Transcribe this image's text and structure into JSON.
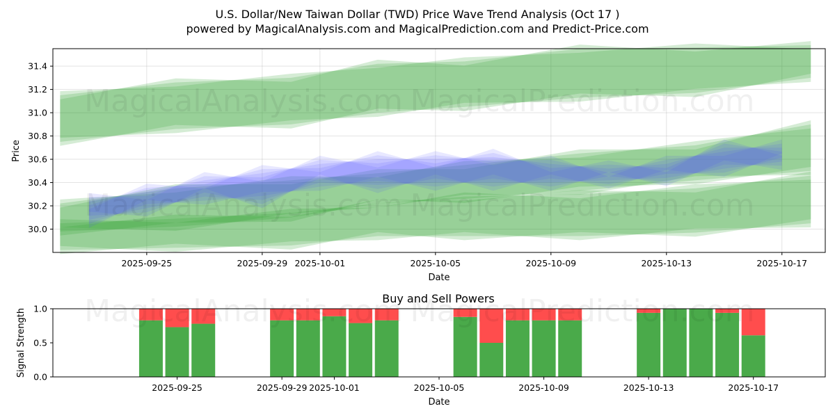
{
  "title": "U.S. Dollar/New Taiwan Dollar (TWD) Price Wave Trend Analysis (Oct 17 )",
  "subtitle": "powered by MagicalAnalysis.com and MagicalPrediction.com and Predict-Price.com",
  "watermarks": [
    "MagicalAnalysis.com",
    "MagicalPrediction.com"
  ],
  "colors": {
    "band_green": "#2ca02c",
    "band_blue": "#4a4aff",
    "buy": "#4aaa4a",
    "sell": "#ff4d4d"
  },
  "chart_data": [
    {
      "type": "area",
      "name": "price-wave-chart",
      "xlabel": "Date",
      "ylabel": "Price",
      "ylim": [
        29.8,
        31.55
      ],
      "xlim": [
        "2025-09-21T18:00",
        "2025-10-18T12:00"
      ],
      "x_tick_labels": [
        "2025-09-25",
        "2025-09-29",
        "2025-10-01",
        "2025-10-05",
        "2025-10-09",
        "2025-10-13",
        "2025-10-17"
      ],
      "y_tick_labels": [
        "30.0",
        "30.2",
        "30.4",
        "30.6",
        "30.8",
        "31.0",
        "31.2",
        "31.4"
      ],
      "y_ticks": [
        30.0,
        30.2,
        30.4,
        30.6,
        30.8,
        31.0,
        31.2,
        31.4
      ],
      "grid": true,
      "series": [
        {
          "name": "upper-wave-band",
          "color": "green",
          "x": [
            "2025-09-22",
            "2025-09-26",
            "2025-09-30",
            "2025-10-03",
            "2025-10-06",
            "2025-10-10",
            "2025-10-14",
            "2025-10-18"
          ],
          "lower": [
            30.75,
            30.86,
            30.9,
            31.0,
            31.05,
            31.13,
            31.17,
            31.3
          ],
          "upper": [
            31.15,
            31.26,
            31.3,
            31.42,
            31.44,
            31.55,
            31.56,
            31.58
          ]
        },
        {
          "name": "middle-wave-band",
          "color": "green",
          "x": [
            "2025-09-22",
            "2025-09-26",
            "2025-09-30",
            "2025-10-03",
            "2025-10-06",
            "2025-10-10",
            "2025-10-14",
            "2025-10-18"
          ],
          "lower": [
            29.98,
            30.02,
            30.1,
            30.22,
            30.26,
            30.33,
            30.42,
            30.5
          ],
          "upper": [
            30.22,
            30.35,
            30.42,
            30.48,
            30.55,
            30.65,
            30.72,
            30.9
          ]
        },
        {
          "name": "lower-wave-band",
          "color": "green",
          "x": [
            "2025-09-22",
            "2025-09-26",
            "2025-09-30",
            "2025-10-03",
            "2025-10-06",
            "2025-10-10",
            "2025-10-14",
            "2025-10-18"
          ],
          "lower": [
            29.82,
            29.84,
            29.86,
            29.94,
            29.94,
            29.94,
            29.97,
            30.05
          ],
          "upper": [
            30.05,
            30.09,
            30.14,
            30.22,
            30.28,
            30.3,
            30.35,
            30.46
          ]
        },
        {
          "name": "price-wave-blue",
          "color": "blue",
          "x": [
            "2025-09-23",
            "2025-09-25",
            "2025-09-27",
            "2025-09-29",
            "2025-10-01",
            "2025-10-03",
            "2025-10-05",
            "2025-10-07",
            "2025-10-09",
            "2025-10-11",
            "2025-10-13",
            "2025-10-15",
            "2025-10-17"
          ],
          "lower": [
            30.08,
            30.18,
            30.28,
            30.25,
            30.4,
            30.38,
            30.4,
            30.4,
            30.4,
            30.42,
            30.44,
            30.52,
            30.58
          ],
          "upper": [
            30.24,
            30.32,
            30.42,
            30.48,
            30.56,
            30.6,
            30.6,
            30.62,
            30.56,
            30.52,
            30.56,
            30.7,
            30.7
          ]
        }
      ]
    },
    {
      "type": "bar",
      "name": "buy-sell-powers-chart",
      "title": "Buy and Sell Powers",
      "xlabel": "Date",
      "ylabel": "Signal Strength",
      "ylim": [
        0,
        1.0
      ],
      "y_ticks": [
        0.0,
        0.5,
        1.0
      ],
      "y_tick_labels": [
        "0.0",
        "0.5",
        "1.0"
      ],
      "x_tick_labels": [
        "2025-09-25",
        "2025-09-29",
        "2025-10-01",
        "2025-10-05",
        "2025-10-09",
        "2025-10-13",
        "2025-10-17"
      ],
      "categories": [
        "2025-09-24",
        "2025-09-25",
        "2025-09-26",
        "2025-09-29",
        "2025-09-30",
        "2025-10-01",
        "2025-10-02",
        "2025-10-03",
        "2025-10-06",
        "2025-10-07",
        "2025-10-08",
        "2025-10-09",
        "2025-10-10",
        "2025-10-13",
        "2025-10-14",
        "2025-10-15",
        "2025-10-16",
        "2025-10-17"
      ],
      "series": [
        {
          "name": "Buy",
          "values": [
            0.83,
            0.73,
            0.78,
            0.83,
            0.83,
            0.89,
            0.79,
            0.83,
            0.88,
            0.5,
            0.83,
            0.83,
            0.83,
            0.94,
            1.0,
            1.0,
            0.94,
            0.61
          ]
        },
        {
          "name": "Sell",
          "values": [
            0.17,
            0.27,
            0.22,
            0.17,
            0.17,
            0.11,
            0.21,
            0.17,
            0.12,
            0.5,
            0.17,
            0.17,
            0.17,
            0.06,
            0.0,
            0.0,
            0.06,
            0.39
          ]
        }
      ]
    }
  ]
}
